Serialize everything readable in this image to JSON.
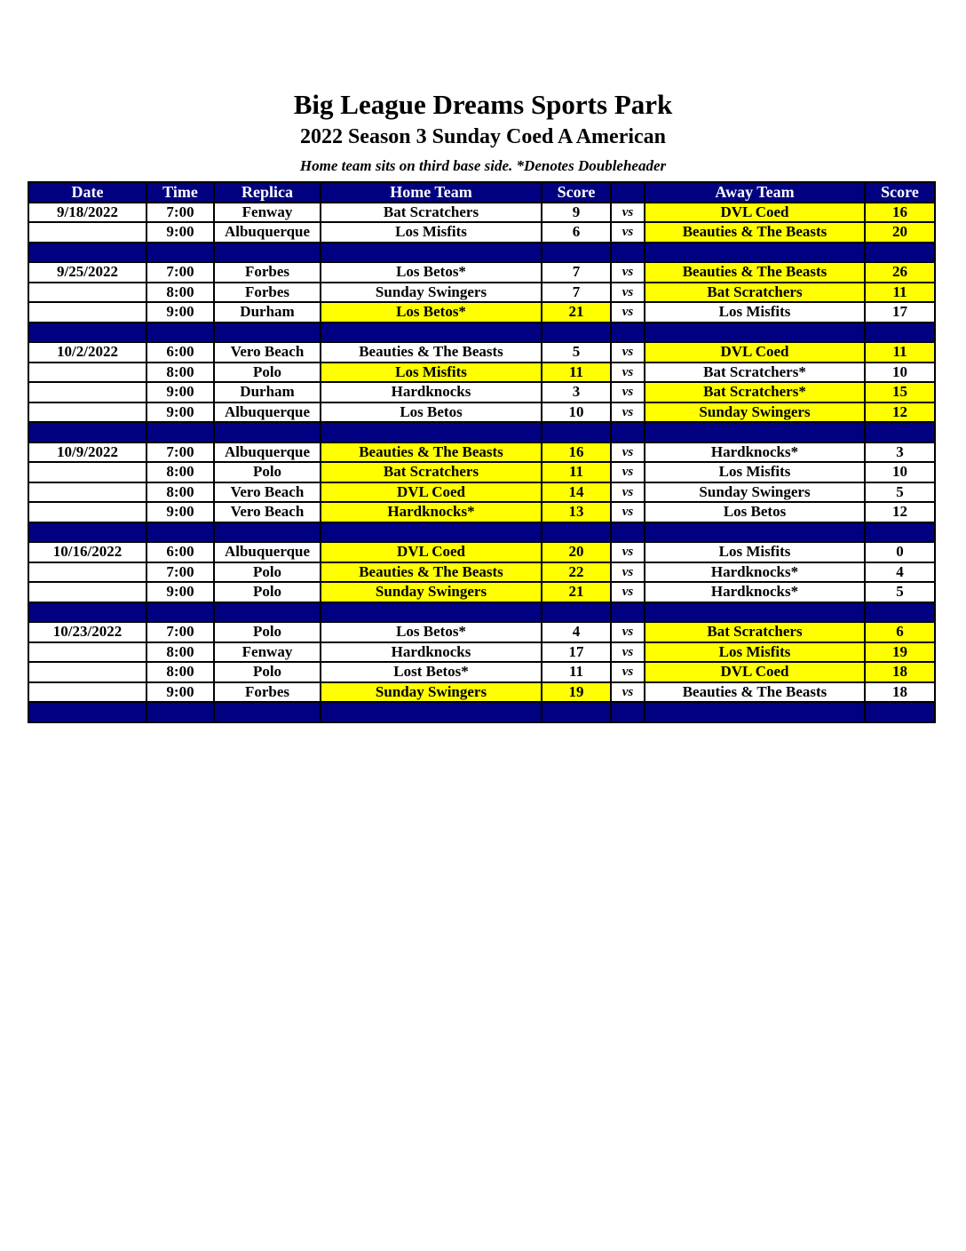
{
  "header": {
    "title": "Big League Dreams Sports Park",
    "subtitle": "2022 Season 3 Sunday Coed A American",
    "note": "Home team sits on third base side.  *Denotes Doubleheader"
  },
  "colors": {
    "header_bg": "#000080",
    "winner_highlight": "#ffff00"
  },
  "columns": [
    "Date",
    "Time",
    "Replica",
    "Home Team",
    "Score",
    "",
    "Away Team",
    "Score"
  ],
  "vs_label": "vs",
  "weeks": [
    {
      "date": "9/18/2022",
      "games": [
        {
          "time": "7:00",
          "replica": "Fenway",
          "home": "Bat Scratchers",
          "home_score": "9",
          "away": "DVL Coed",
          "away_score": "16",
          "winner": "away"
        },
        {
          "time": "9:00",
          "replica": "Albuquerque",
          "home": "Los Misfits",
          "home_score": "6",
          "away": "Beauties & The Beasts",
          "away_score": "20",
          "winner": "away"
        }
      ]
    },
    {
      "date": "9/25/2022",
      "games": [
        {
          "time": "7:00",
          "replica": "Forbes",
          "home": "Los Betos*",
          "home_score": "7",
          "away": "Beauties & The Beasts",
          "away_score": "26",
          "winner": "away"
        },
        {
          "time": "8:00",
          "replica": "Forbes",
          "home": "Sunday Swingers",
          "home_score": "7",
          "away": "Bat Scratchers",
          "away_score": "11",
          "winner": "away"
        },
        {
          "time": "9:00",
          "replica": "Durham",
          "home": "Los Betos*",
          "home_score": "21",
          "away": "Los Misfits",
          "away_score": "17",
          "winner": "home"
        }
      ]
    },
    {
      "date": "10/2/2022",
      "games": [
        {
          "time": "6:00",
          "replica": "Vero Beach",
          "home": "Beauties & The Beasts",
          "home_score": "5",
          "away": "DVL Coed",
          "away_score": "11",
          "winner": "away"
        },
        {
          "time": "8:00",
          "replica": "Polo",
          "home": "Los Misfits",
          "home_score": "11",
          "away": "Bat Scratchers*",
          "away_score": "10",
          "winner": "home"
        },
        {
          "time": "9:00",
          "replica": "Durham",
          "home": "Hardknocks",
          "home_score": "3",
          "away": "Bat Scratchers*",
          "away_score": "15",
          "winner": "away"
        },
        {
          "time": "9:00",
          "replica": "Albuquerque",
          "home": "Los Betos",
          "home_score": "10",
          "away": "Sunday Swingers",
          "away_score": "12",
          "winner": "away"
        }
      ]
    },
    {
      "date": "10/9/2022",
      "games": [
        {
          "time": "7:00",
          "replica": "Albuquerque",
          "home": "Beauties & The Beasts",
          "home_score": "16",
          "away": "Hardknocks*",
          "away_score": "3",
          "winner": "home"
        },
        {
          "time": "8:00",
          "replica": "Polo",
          "home": "Bat Scratchers",
          "home_score": "11",
          "away": "Los Misfits",
          "away_score": "10",
          "winner": "home"
        },
        {
          "time": "8:00",
          "replica": "Vero Beach",
          "home": "DVL Coed",
          "home_score": "14",
          "away": "Sunday Swingers",
          "away_score": "5",
          "winner": "home"
        },
        {
          "time": "9:00",
          "replica": "Vero Beach",
          "home": "Hardknocks*",
          "home_score": "13",
          "away": "Los Betos",
          "away_score": "12",
          "winner": "home"
        }
      ]
    },
    {
      "date": "10/16/2022",
      "games": [
        {
          "time": "6:00",
          "replica": "Albuquerque",
          "home": "DVL Coed",
          "home_score": "20",
          "away": "Los Misfits",
          "away_score": "0",
          "winner": "home"
        },
        {
          "time": "7:00",
          "replica": "Polo",
          "home": "Beauties & The Beasts",
          "home_score": "22",
          "away": "Hardknocks*",
          "away_score": "4",
          "winner": "home"
        },
        {
          "time": "9:00",
          "replica": "Polo",
          "home": "Sunday Swingers",
          "home_score": "21",
          "away": "Hardknocks*",
          "away_score": "5",
          "winner": "home"
        }
      ]
    },
    {
      "date": "10/23/2022",
      "games": [
        {
          "time": "7:00",
          "replica": "Polo",
          "home": "Los Betos*",
          "home_score": "4",
          "away": "Bat Scratchers",
          "away_score": "6",
          "winner": "away"
        },
        {
          "time": "8:00",
          "replica": "Fenway",
          "home": "Hardknocks",
          "home_score": "17",
          "away": "Los Misfits",
          "away_score": "19",
          "winner": "away"
        },
        {
          "time": "8:00",
          "replica": "Polo",
          "home": "Lost Betos*",
          "home_score": "11",
          "away": "DVL Coed",
          "away_score": "18",
          "winner": "away"
        },
        {
          "time": "9:00",
          "replica": "Forbes",
          "home": "Sunday Swingers",
          "home_score": "19",
          "away": "Beauties & The Beasts",
          "away_score": "18",
          "winner": "home"
        }
      ]
    }
  ]
}
